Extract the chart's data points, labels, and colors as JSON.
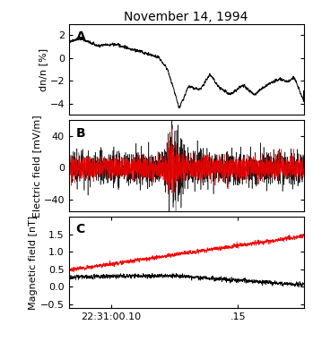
{
  "title": "November 14, 1994",
  "title_fontsize": 10,
  "panel_labels": [
    "A",
    "B",
    "C"
  ],
  "panel_label_fontsize": 10,
  "panel_label_fontweight": "bold",
  "panel_A": {
    "ylabel": "dn/n [%]",
    "ylim": [
      -5,
      3
    ],
    "yticks": [
      -4,
      -2,
      0,
      2
    ],
    "color": "black",
    "linewidth": 0.7
  },
  "panel_B": {
    "ylabel": "Electric field [mV/m]",
    "ylim": [
      -55,
      60
    ],
    "yticks": [
      -40,
      0,
      40
    ],
    "linewidth_black": 0.4,
    "linewidth_red": 0.5
  },
  "panel_C": {
    "ylabel": "Magnetic field [nT]",
    "ylim": [
      -0.6,
      2.0
    ],
    "yticks": [
      -0.5,
      0,
      0.5,
      1.0,
      1.5
    ],
    "linewidth": 0.5
  },
  "xticklabels": [
    "22:31:00.10",
    ".15"
  ],
  "background_color": "white",
  "axes_linewidth": 0.8,
  "tick_fontsize": 8,
  "ylabel_fontsize": 8
}
